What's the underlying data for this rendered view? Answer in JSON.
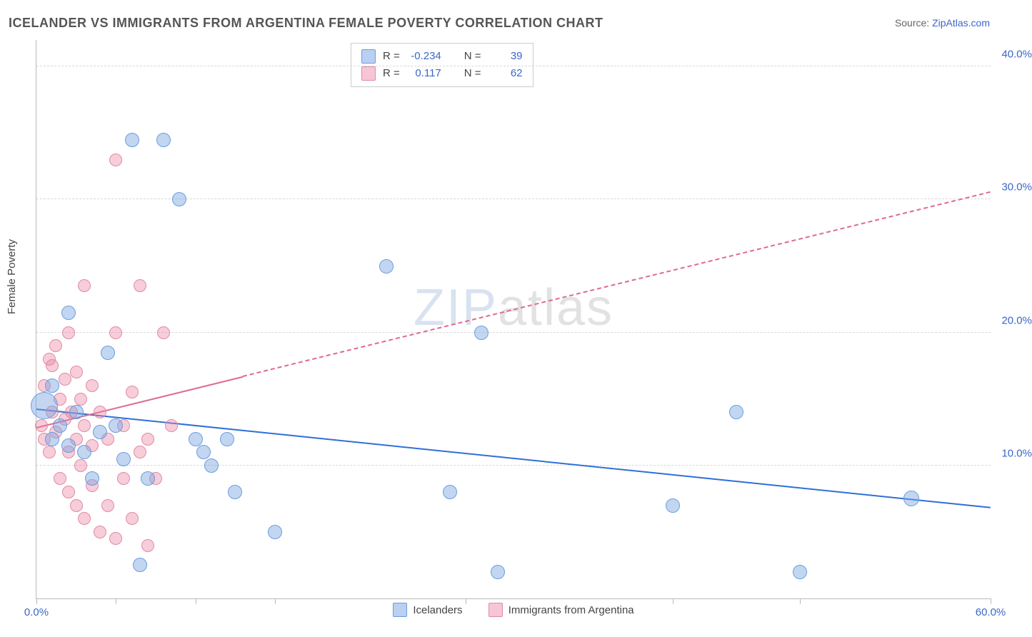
{
  "title": "ICELANDER VS IMMIGRANTS FROM ARGENTINA FEMALE POVERTY CORRELATION CHART",
  "source_prefix": "Source: ",
  "source_name": "ZipAtlas.com",
  "ylabel": "Female Poverty",
  "watermark_bold": "ZIP",
  "watermark_thin": "atlas",
  "chart": {
    "type": "scatter",
    "xlim": [
      0,
      60
    ],
    "ylim": [
      0,
      42
    ],
    "x_ticks": [
      0,
      5,
      10,
      15,
      27,
      40,
      48,
      60
    ],
    "x_tick_labels": {
      "0": "0.0%",
      "60": "60.0%"
    },
    "y_ticks": [
      10,
      20,
      30,
      40
    ],
    "y_tick_labels": {
      "10": "10.0%",
      "20": "20.0%",
      "30": "30.0%",
      "40": "40.0%"
    },
    "background_color": "#ffffff",
    "grid_color": "#d8d8d8",
    "axis_color": "#bbbbbb",
    "series": [
      {
        "name": "Icelanders",
        "color_fill": "rgba(120,165,225,0.45)",
        "color_stroke": "#6a9de0",
        "swatch_fill": "#b9d0f0",
        "swatch_border": "#6a9de0",
        "r_value": "-0.234",
        "n_value": "39",
        "regression": {
          "x1": 0,
          "y1": 14.2,
          "x2": 60,
          "y2": 6.8,
          "color": "#2f6fd8",
          "width": 2.5,
          "dash": false,
          "solid_until_x": 60
        },
        "points": [
          [
            0.5,
            14.5,
            18
          ],
          [
            1,
            12,
            9
          ],
          [
            1.5,
            13,
            9
          ],
          [
            2,
            11.5,
            9
          ],
          [
            2.5,
            14,
            9
          ],
          [
            1,
            16,
            9
          ],
          [
            2,
            21.5,
            9
          ],
          [
            3,
            11,
            9
          ],
          [
            3.5,
            9,
            9
          ],
          [
            4,
            12.5,
            9
          ],
          [
            4.5,
            18.5,
            9
          ],
          [
            5,
            13,
            9
          ],
          [
            5.5,
            10.5,
            9
          ],
          [
            6,
            34.5,
            9
          ],
          [
            6.5,
            2.5,
            9
          ],
          [
            7,
            9,
            9
          ],
          [
            8,
            34.5,
            9
          ],
          [
            9,
            30,
            9
          ],
          [
            10,
            12,
            9
          ],
          [
            10.5,
            11,
            9
          ],
          [
            11,
            10,
            9
          ],
          [
            12,
            12,
            9
          ],
          [
            12.5,
            8,
            9
          ],
          [
            15,
            5,
            9
          ],
          [
            22,
            25,
            9
          ],
          [
            26,
            8,
            9
          ],
          [
            28,
            20,
            9
          ],
          [
            29,
            2,
            9
          ],
          [
            40,
            7,
            9
          ],
          [
            44,
            14,
            9
          ],
          [
            48,
            2,
            9
          ],
          [
            55,
            7.5,
            10
          ]
        ]
      },
      {
        "name": "Immigrants from Argentina",
        "color_fill": "rgba(235,130,160,0.40)",
        "color_stroke": "#e08aa5",
        "swatch_fill": "#f6c6d6",
        "swatch_border": "#e08aa5",
        "r_value": "0.117",
        "n_value": "62",
        "regression": {
          "x1": 0,
          "y1": 12.8,
          "x2": 60,
          "y2": 30.5,
          "color": "#e06a8e",
          "width": 2,
          "dash": true,
          "solid_until_x": 13
        },
        "points": [
          [
            0.3,
            13,
            8
          ],
          [
            0.5,
            12,
            8
          ],
          [
            0.5,
            16,
            8
          ],
          [
            0.8,
            18,
            8
          ],
          [
            0.8,
            11,
            8
          ],
          [
            1,
            14,
            8
          ],
          [
            1,
            17.5,
            8
          ],
          [
            1.2,
            12.5,
            8
          ],
          [
            1.2,
            19,
            8
          ],
          [
            1.5,
            9,
            8
          ],
          [
            1.5,
            15,
            8
          ],
          [
            1.8,
            13.5,
            8
          ],
          [
            1.8,
            16.5,
            8
          ],
          [
            2,
            8,
            8
          ],
          [
            2,
            11,
            8
          ],
          [
            2,
            20,
            8
          ],
          [
            2.2,
            14,
            8
          ],
          [
            2.5,
            7,
            8
          ],
          [
            2.5,
            12,
            8
          ],
          [
            2.5,
            17,
            8
          ],
          [
            2.8,
            10,
            8
          ],
          [
            2.8,
            15,
            8
          ],
          [
            3,
            6,
            8
          ],
          [
            3,
            13,
            8
          ],
          [
            3,
            23.5,
            8
          ],
          [
            3.5,
            8.5,
            8
          ],
          [
            3.5,
            11.5,
            8
          ],
          [
            3.5,
            16,
            8
          ],
          [
            4,
            5,
            8
          ],
          [
            4,
            14,
            8
          ],
          [
            4.5,
            7,
            8
          ],
          [
            4.5,
            12,
            8
          ],
          [
            5,
            4.5,
            8
          ],
          [
            5,
            20,
            8
          ],
          [
            5,
            33,
            8
          ],
          [
            5.5,
            9,
            8
          ],
          [
            5.5,
            13,
            8
          ],
          [
            6,
            6,
            8
          ],
          [
            6,
            15.5,
            8
          ],
          [
            6.5,
            11,
            8
          ],
          [
            6.5,
            23.5,
            8
          ],
          [
            7,
            4,
            8
          ],
          [
            7,
            12,
            8
          ],
          [
            7.5,
            9,
            8
          ],
          [
            8,
            20,
            8
          ],
          [
            8.5,
            13,
            8
          ]
        ]
      }
    ]
  },
  "legend": {
    "series1_label": "Icelanders",
    "series2_label": "Immigrants from Argentina"
  },
  "stats_labels": {
    "r": "R =",
    "n": "N ="
  }
}
